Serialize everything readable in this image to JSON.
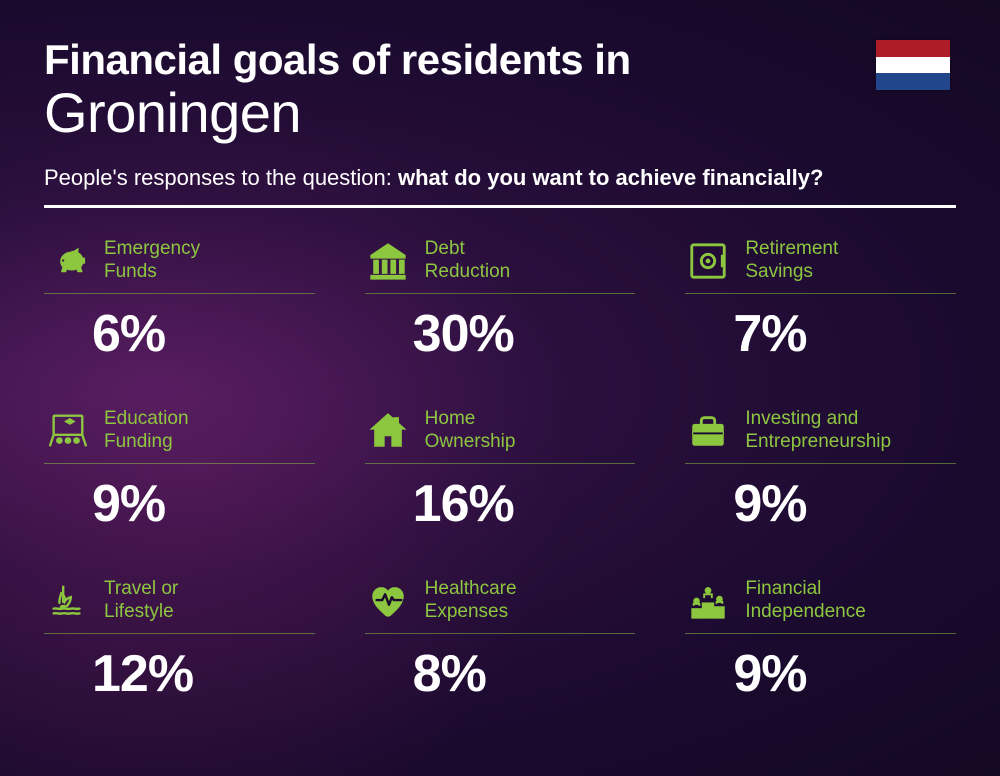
{
  "colors": {
    "accent": "#8dc63f",
    "text": "#ffffff",
    "flag_top": "#ae1c28",
    "flag_middle": "#ffffff",
    "flag_bottom": "#21468b"
  },
  "header": {
    "title_line1": "Financial goals of residents in",
    "title_line2": "Groningen",
    "subtitle_prefix": "People's responses to the question: ",
    "subtitle_bold": "what do you want to achieve financially?"
  },
  "items": [
    {
      "icon": "piggy",
      "label_l1": "Emergency",
      "label_l2": "Funds",
      "value": "6%"
    },
    {
      "icon": "bank",
      "label_l1": "Debt",
      "label_l2": "Reduction",
      "value": "30%"
    },
    {
      "icon": "safe",
      "label_l1": "Retirement",
      "label_l2": "Savings",
      "value": "7%"
    },
    {
      "icon": "education",
      "label_l1": "Education",
      "label_l2": "Funding",
      "value": "9%"
    },
    {
      "icon": "house",
      "label_l1": "Home",
      "label_l2": "Ownership",
      "value": "16%"
    },
    {
      "icon": "briefcase",
      "label_l1": "Investing and",
      "label_l2": "Entrepreneurship",
      "value": "9%"
    },
    {
      "icon": "travel",
      "label_l1": "Travel or",
      "label_l2": "Lifestyle",
      "value": "12%"
    },
    {
      "icon": "health",
      "label_l1": "Healthcare",
      "label_l2": "Expenses",
      "value": "8%"
    },
    {
      "icon": "podium",
      "label_l1": "Financial",
      "label_l2": "Independence",
      "value": "9%"
    }
  ]
}
